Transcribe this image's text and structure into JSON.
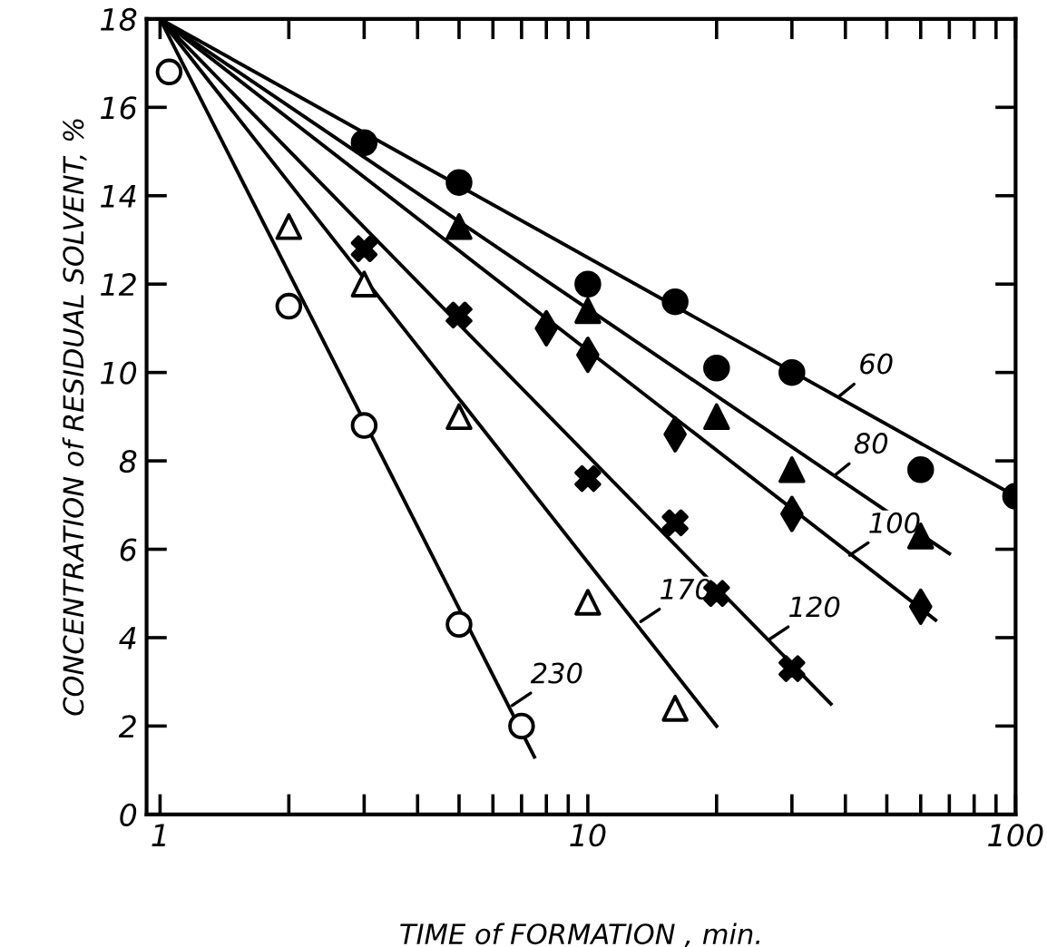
{
  "chart_data": {
    "type": "scatter",
    "xlabel": "TIME of FORMATION , min.",
    "ylabel": "CONCENTRATION of RESIDUAL SOLVENT, %",
    "log": "x",
    "grid": false,
    "xlim": [
      0.93,
      100
    ],
    "ylim": [
      0,
      18
    ],
    "xticks": [
      1,
      {
        "value": 2,
        "label": null
      },
      {
        "value": 3,
        "label": null
      },
      {
        "value": 4,
        "label": null
      },
      {
        "value": 5,
        "label": null
      },
      {
        "value": 6,
        "label": null
      },
      {
        "value": 7,
        "label": null
      },
      {
        "value": 8,
        "label": null
      },
      {
        "value": 9,
        "label": null
      },
      10,
      {
        "value": 20,
        "label": null
      },
      {
        "value": 30,
        "label": null
      },
      {
        "value": 40,
        "label": null
      },
      {
        "value": 50,
        "label": null
      },
      {
        "value": 60,
        "label": null
      },
      {
        "value": 70,
        "label": null
      },
      {
        "value": 80,
        "label": null
      },
      {
        "value": 90,
        "label": null
      },
      100
    ],
    "yticks": [
      0,
      2,
      4,
      6,
      8,
      10,
      12,
      14,
      16,
      18
    ],
    "series": [
      {
        "marker": "circle",
        "color": "#000000",
        "x": [
          3,
          5,
          10,
          16,
          20,
          30,
          60,
          100
        ],
        "values": [
          15.2,
          14.3,
          12.0,
          11.6,
          10.1,
          10.0,
          7.8,
          7.2
        ]
      },
      {
        "marker": "triangle",
        "color": "#000000",
        "x": [
          5,
          10,
          20,
          30,
          60
        ],
        "values": [
          13.3,
          11.4,
          9.0,
          7.8,
          6.3
        ]
      },
      {
        "marker": "diamond",
        "color": "#000000",
        "x": [
          8,
          10,
          16,
          30,
          60
        ],
        "values": [
          11.0,
          10.4,
          8.6,
          6.8,
          4.7
        ]
      },
      {
        "marker": "cross",
        "color": "#000000",
        "x": [
          3,
          5,
          10,
          16,
          20,
          30
        ],
        "values": [
          12.8,
          11.3,
          7.6,
          6.6,
          5.0,
          3.3
        ]
      },
      {
        "marker": "triangle",
        "color": "#ffffff",
        "x": [
          2,
          3,
          5,
          10,
          16
        ],
        "values": [
          13.3,
          12.0,
          9.0,
          4.8,
          2.4
        ]
      },
      {
        "marker": "circle",
        "color": "#ffffff",
        "x": [
          1.05,
          2,
          3,
          5,
          7
        ],
        "values": [
          16.8,
          11.5,
          8.8,
          4.3,
          2.0
        ]
      },
      {
        "type": "line",
        "marker": "none",
        "line_style": "solid",
        "color": "#000000",
        "x": [
          1,
          100
        ],
        "values": [
          18,
          7.2
        ]
      },
      {
        "type": "line",
        "marker": "none",
        "line_style": "solid",
        "color": "#000000",
        "x": [
          1,
          70
        ],
        "values": [
          18,
          5.9
        ]
      },
      {
        "type": "line",
        "marker": "none",
        "line_style": "solid",
        "color": "#000000",
        "x": [
          1,
          65
        ],
        "values": [
          18,
          4.4
        ]
      },
      {
        "type": "line",
        "marker": "none",
        "line_style": "solid",
        "color": "#000000",
        "x": [
          1,
          37
        ],
        "values": [
          18,
          2.5
        ]
      },
      {
        "type": "line",
        "marker": "none",
        "line_style": "solid",
        "color": "#000000",
        "x": [
          1,
          20
        ],
        "values": [
          18,
          2.0
        ]
      },
      {
        "type": "line",
        "marker": "none",
        "line_style": "solid",
        "color": "#000000",
        "x": [
          1,
          7.5
        ],
        "values": [
          18,
          1.3
        ]
      }
    ],
    "annotations": [
      {
        "text": "60",
        "x": 38,
        "y": 9.4
      },
      {
        "text": "80",
        "x": 37,
        "y": 7.6
      },
      {
        "text": "100",
        "x": 40,
        "y": 5.8
      },
      {
        "text": "120",
        "x": 26,
        "y": 3.9
      },
      {
        "text": "170",
        "x": 13,
        "y": 4.3
      },
      {
        "text": "230",
        "x": 6.5,
        "y": 2.4
      }
    ]
  }
}
